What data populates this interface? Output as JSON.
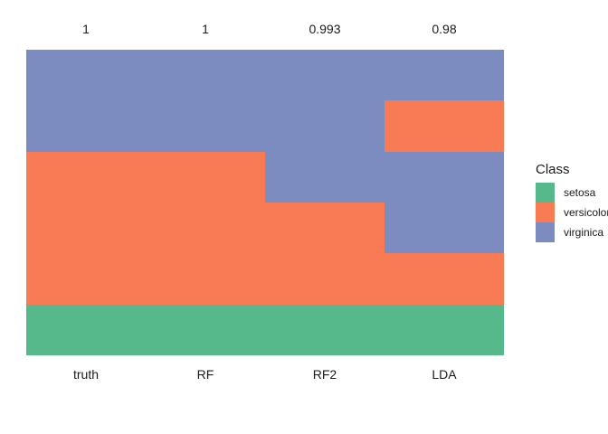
{
  "legend": {
    "title": "Class",
    "position": "right"
  },
  "chart_data": {
    "type": "heatmap",
    "title": "",
    "columns": [
      "truth",
      "RF",
      "RF2",
      "LDA"
    ],
    "column_scores": [
      "1",
      "1",
      "0.993",
      "0.98"
    ],
    "classes": [
      "setosa",
      "versicolor",
      "virginica"
    ],
    "class_colors": {
      "setosa": "#55B98C",
      "versicolor": "#F87B54",
      "virginica": "#7D8CC0"
    },
    "legend_title": "Class",
    "legend_position": "right",
    "axes": {
      "x_ticks": [
        "truth",
        "RF",
        "RF2",
        "LDA"
      ],
      "y_ticks": [],
      "grid": false
    },
    "segments": {
      "truth": [
        {
          "class": "virginica",
          "from": 0,
          "to": 0.3333
        },
        {
          "class": "versicolor",
          "from": 0.3333,
          "to": 0.8333
        },
        {
          "class": "setosa",
          "from": 0.8333,
          "to": 1
        }
      ],
      "RF": [
        {
          "class": "virginica",
          "from": 0,
          "to": 0.3333
        },
        {
          "class": "versicolor",
          "from": 0.3333,
          "to": 0.8333
        },
        {
          "class": "setosa",
          "from": 0.8333,
          "to": 1
        }
      ],
      "RF2": [
        {
          "class": "virginica",
          "from": 0,
          "to": 0.5
        },
        {
          "class": "versicolor",
          "from": 0.5,
          "to": 0.8333
        },
        {
          "class": "setosa",
          "from": 0.8333,
          "to": 1
        }
      ],
      "LDA": [
        {
          "class": "virginica",
          "from": 0,
          "to": 0.1667
        },
        {
          "class": "versicolor",
          "from": 0.1667,
          "to": 0.3333
        },
        {
          "class": "virginica",
          "from": 0.3333,
          "to": 0.6667
        },
        {
          "class": "versicolor",
          "from": 0.6667,
          "to": 0.8333
        },
        {
          "class": "setosa",
          "from": 0.8333,
          "to": 1
        }
      ]
    }
  }
}
